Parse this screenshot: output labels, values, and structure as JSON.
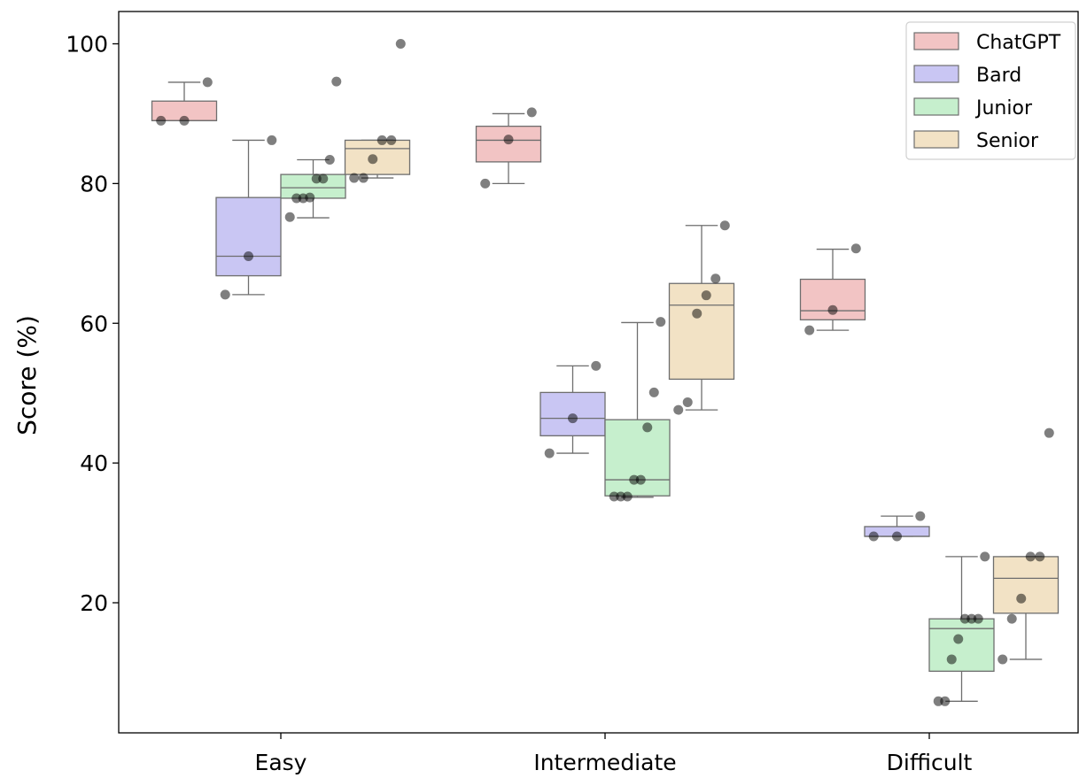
{
  "chart_data": {
    "type": "box",
    "title": "",
    "xlabel": "",
    "ylabel": "Score (%)",
    "categories": [
      "Easy",
      "Intermediate",
      "Difficult"
    ],
    "yticks": [
      20,
      40,
      60,
      80,
      100
    ],
    "ylim": [
      0,
      105
    ],
    "legend_position": "top-right",
    "series": [
      {
        "name": "ChatGPT",
        "color": "#f2c4c4",
        "boxes": [
          {
            "whisker_low": 89.0,
            "q1": 89.0,
            "median": 89.0,
            "q3": 91.8,
            "whisker_high": 94.5
          },
          {
            "whisker_low": 80.0,
            "q1": 83.1,
            "median": 86.2,
            "q3": 88.2,
            "whisker_high": 90.0
          },
          {
            "whisker_low": 59.0,
            "q1": 60.5,
            "median": 61.8,
            "q3": 66.3,
            "whisker_high": 70.6
          }
        ],
        "points": [
          [
            89.0,
            89.0,
            94.5
          ],
          [
            80.0,
            86.3,
            90.2
          ],
          [
            59.0,
            61.9,
            70.7
          ]
        ]
      },
      {
        "name": "Bard",
        "color": "#c9c6f3",
        "boxes": [
          {
            "whisker_low": 64.1,
            "q1": 66.8,
            "median": 69.6,
            "q3": 78.0,
            "whisker_high": 86.2
          },
          {
            "whisker_low": 41.4,
            "q1": 43.9,
            "median": 46.4,
            "q3": 50.1,
            "whisker_high": 53.9
          },
          {
            "whisker_low": 29.5,
            "q1": 29.5,
            "median": 29.5,
            "q3": 30.9,
            "whisker_high": 32.4
          }
        ],
        "points": [
          [
            64.1,
            69.6,
            86.2
          ],
          [
            41.4,
            46.4,
            53.9
          ],
          [
            29.5,
            29.5,
            32.4
          ]
        ]
      },
      {
        "name": "Junior",
        "color": "#c6efcd",
        "boxes": [
          {
            "whisker_low": 75.1,
            "q1": 77.9,
            "median": 79.4,
            "q3": 81.3,
            "whisker_high": 83.4
          },
          {
            "whisker_low": 35.1,
            "q1": 35.3,
            "median": 37.6,
            "q3": 46.2,
            "whisker_high": 60.1
          },
          {
            "whisker_low": 5.9,
            "q1": 10.2,
            "median": 16.3,
            "q3": 17.7,
            "whisker_high": 26.6
          }
        ],
        "points": [
          [
            75.2,
            77.9,
            77.9,
            78.0,
            80.7,
            80.7,
            83.4,
            94.6
          ],
          [
            35.2,
            35.2,
            35.2,
            37.6,
            37.6,
            45.1,
            50.1,
            60.2
          ],
          [
            5.9,
            5.9,
            11.9,
            14.8,
            17.7,
            17.7,
            17.7,
            26.6
          ]
        ]
      },
      {
        "name": "Senior",
        "color": "#f2e2c5",
        "boxes": [
          {
            "whisker_low": 80.8,
            "q1": 81.3,
            "median": 85.0,
            "q3": 86.2,
            "whisker_high": 86.2
          },
          {
            "whisker_low": 47.6,
            "q1": 52.0,
            "median": 62.6,
            "q3": 65.7,
            "whisker_high": 74.0
          },
          {
            "whisker_low": 11.9,
            "q1": 18.5,
            "median": 23.5,
            "q3": 26.6,
            "whisker_high": 26.6
          }
        ],
        "points": [
          [
            80.8,
            80.8,
            83.5,
            86.2,
            86.2,
            100.0
          ],
          [
            47.6,
            48.7,
            61.4,
            64.0,
            66.4,
            74.0
          ],
          [
            11.9,
            17.7,
            20.6,
            26.6,
            26.6,
            44.3
          ]
        ]
      }
    ]
  }
}
